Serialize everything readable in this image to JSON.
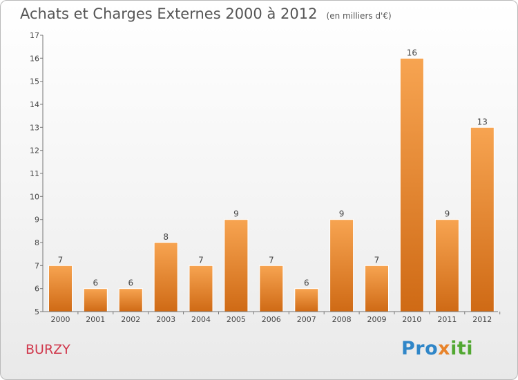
{
  "chart_data": {
    "type": "bar",
    "title": "Achats et Charges Externes 2000 à 2012",
    "subtitle": "(en milliers d'€)",
    "categories": [
      "2000",
      "2001",
      "2002",
      "2003",
      "2004",
      "2005",
      "2006",
      "2007",
      "2008",
      "2009",
      "2010",
      "2011",
      "2012"
    ],
    "values": [
      7,
      6,
      6,
      8,
      7,
      9,
      7,
      6,
      9,
      7,
      16,
      9,
      13
    ],
    "ylim": [
      5,
      17
    ],
    "yticks": [
      5,
      6,
      7,
      8,
      9,
      10,
      11,
      12,
      13,
      14,
      15,
      16,
      17
    ],
    "grid": false,
    "bar_color_top": "#f7a451",
    "bar_color_bottom": "#cf6a15"
  },
  "commune": "BURZY",
  "logo": {
    "part1": "Pro",
    "part2": "x",
    "part3": "iti"
  }
}
